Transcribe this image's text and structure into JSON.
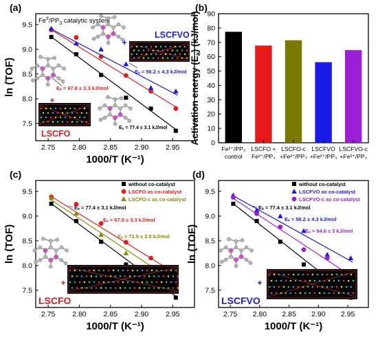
{
  "figure": {
    "panels": [
      {
        "letter": "(a)",
        "title_prefix": "Fe",
        "title_sup": "II",
        "title_suffix": "/PP",
        "title_sub": "3",
        "title_tail": " catalytic system",
        "xlabel": "1000/T (K⁻¹)",
        "ylabel": "ln (TOF)",
        "big_labels": [
          {
            "text": "LSCFVO",
            "color": "#1a1ae6"
          },
          {
            "text": "LSCFO",
            "color": "#e61a1a"
          }
        ]
      },
      {
        "letter": "(b)",
        "ylabel": "Activation energy (E",
        "ylabel_sub": "a",
        "ylabel_tail": ") (kJ/mol)"
      },
      {
        "letter": "(c)",
        "xlabel": "1000/T (K⁻¹)",
        "ylabel": "ln (TOF)",
        "big_label": {
          "text": "LSCFO",
          "color": "#e61a1a"
        }
      },
      {
        "letter": "(d)",
        "xlabel": "1000/T (K⁻¹)",
        "ylabel": "ln (TOF)",
        "big_label": {
          "text": "LSCFVO",
          "color": "#1a1ae6"
        }
      }
    ],
    "legend_c": [
      {
        "text": "without co-catalyst",
        "color": "#000000",
        "marker": "square"
      },
      {
        "text": "LSCFO as co-catalyst",
        "color": "#e61a1a",
        "marker": "circle"
      },
      {
        "text": "LSCFO-c as co-catalyst",
        "color": "#8a8a00",
        "marker": "triangle"
      }
    ],
    "legend_d": [
      {
        "text": "without co-catalyst",
        "color": "#000000",
        "marker": "square"
      },
      {
        "text": "LSCFVO as co-catalyst",
        "color": "#1a1ae6",
        "marker": "triangle"
      },
      {
        "text": "LSCFVO-c as co-catalyst",
        "color": "#9b1fd6",
        "marker": "circle"
      }
    ],
    "bar_labels": [
      {
        "l1": "Fe²⁺/PP₃",
        "l2": "control"
      },
      {
        "l1": "LSCFO +",
        "l2": "Fe²⁺/PP₃"
      },
      {
        "l1": "LSCFO-c",
        "l2": "+Fe²⁺/PP₃"
      },
      {
        "l1": "LSCFVO",
        "l2": "+Fe²⁺/PP₃"
      },
      {
        "l1": "LSCFVO-c",
        "l2": "+Fe²⁺/PP₃"
      }
    ]
  },
  "chart_data": [
    {
      "panel": "(a)",
      "type": "scatter",
      "title": "Fe^II/PP3 catalytic system",
      "xlabel": "1000/T (K⁻¹)",
      "ylabel": "ln (TOF)",
      "xlim": [
        2.73,
        2.985
      ],
      "ylim": [
        7.15,
        9.72
      ],
      "xticks": [
        2.75,
        2.8,
        2.85,
        2.9,
        2.95
      ],
      "yticks": [
        7.5,
        8.0,
        8.5,
        9.0,
        9.5
      ],
      "series": [
        {
          "color": "#000000",
          "marker": "square",
          "x": [
            2.755,
            2.795,
            2.835,
            2.875,
            2.915,
            2.955
          ],
          "y": [
            9.25,
            8.9,
            8.48,
            8.02,
            7.8,
            7.35
          ],
          "fit": [
            9.28,
            7.35
          ],
          "annotation": "Eₐ = 77.4 ± 3.1 kJ/mol"
        },
        {
          "color": "#e61a1a",
          "marker": "circle",
          "x": [
            2.755,
            2.795,
            2.835,
            2.875,
            2.915,
            2.955
          ],
          "y": [
            9.39,
            9.24,
            8.85,
            8.47,
            8.15,
            7.8
          ],
          "fit": [
            9.42,
            7.81
          ],
          "annotation": "Eₐ = 67.8 ± 3.3 kJ/mol"
        },
        {
          "color": "#1a1ae6",
          "marker": "triangle",
          "x": [
            2.755,
            2.795,
            2.835,
            2.875,
            2.915,
            2.955
          ],
          "y": [
            9.42,
            9.12,
            9.0,
            8.7,
            8.22,
            8.15
          ],
          "fit": [
            9.43,
            8.07
          ],
          "annotation": "Eₐ = 56.2 ± 4.3 kJ/mol"
        }
      ]
    },
    {
      "panel": "(b)",
      "type": "bar",
      "ylabel": "Activation energy (Eₐ) (kJ/mol)",
      "ylim": [
        0,
        90
      ],
      "yticks": [
        0,
        10,
        20,
        30,
        40,
        50,
        60,
        70,
        80,
        90
      ],
      "categories": [
        "Fe²⁺/PP₃ control",
        "LSCFO + Fe²⁺/PP₃",
        "LSCFO-c +Fe²⁺/PP₃",
        "LSCFVO +Fe²⁺/PP₃",
        "LSCFVO-c +Fe²⁺/PP₃"
      ],
      "values": [
        77.4,
        67.8,
        71.5,
        56.2,
        64.6
      ],
      "colors": [
        "#000000",
        "#e61a1a",
        "#7a7a00",
        "#1a1ae6",
        "#9b1fd6"
      ]
    },
    {
      "panel": "(c)",
      "type": "scatter",
      "xlabel": "1000/T (K⁻¹)",
      "ylabel": "ln (TOF)",
      "xlim": [
        2.73,
        2.985
      ],
      "ylim": [
        7.15,
        9.72
      ],
      "xticks": [
        2.75,
        2.8,
        2.85,
        2.9,
        2.95
      ],
      "yticks": [
        7.5,
        8.0,
        8.5,
        9.0,
        9.5
      ],
      "series": [
        {
          "name": "without co-catalyst",
          "color": "#000000",
          "marker": "square",
          "x": [
            2.755,
            2.795,
            2.835,
            2.875,
            2.915,
            2.955
          ],
          "y": [
            9.25,
            8.9,
            8.48,
            8.02,
            7.8,
            7.35
          ],
          "fit": [
            9.28,
            7.35
          ],
          "annotation": "Eₐ = 77.4 ± 3.1 kJ/mol"
        },
        {
          "name": "LSCFO as co-catalyst",
          "color": "#e61a1a",
          "marker": "circle",
          "x": [
            2.755,
            2.795,
            2.835,
            2.875,
            2.915,
            2.955
          ],
          "y": [
            9.39,
            9.24,
            8.85,
            8.47,
            8.15,
            7.8
          ],
          "fit": [
            9.42,
            7.81
          ],
          "annotation": "Eₐ = 67.8 ± 3.3 kJ/mol"
        },
        {
          "name": "LSCFO-c as co-catalyst",
          "color": "#8a8a00",
          "marker": "triangle",
          "x": [
            2.755,
            2.795,
            2.835,
            2.875,
            2.915,
            2.955
          ],
          "y": [
            9.37,
            9.05,
            8.62,
            8.25,
            7.9,
            7.7
          ],
          "fit": [
            9.35,
            7.63
          ],
          "annotation": "Eₐ = 71.5 ± 2.8 kJ/mol"
        }
      ]
    },
    {
      "panel": "(d)",
      "type": "scatter",
      "xlabel": "1000/T (K⁻¹)",
      "ylabel": "ln (TOF)",
      "xlim": [
        2.73,
        2.985
      ],
      "ylim": [
        7.15,
        9.72
      ],
      "xticks": [
        2.75,
        2.8,
        2.85,
        2.9,
        2.95
      ],
      "yticks": [
        7.5,
        8.0,
        8.5,
        9.0,
        9.5
      ],
      "series": [
        {
          "name": "without co-catalyst",
          "color": "#000000",
          "marker": "square",
          "x": [
            2.755,
            2.795,
            2.835,
            2.875,
            2.915,
            2.955
          ],
          "y": [
            9.25,
            8.9,
            8.48,
            8.02,
            7.8,
            7.35
          ],
          "fit": [
            9.28,
            7.35
          ],
          "annotation": "Eₐ = 77.4 ± 3.1 kJ/mol"
        },
        {
          "name": "LSCFVO as co-catalyst",
          "color": "#1a1ae6",
          "marker": "triangle",
          "x": [
            2.755,
            2.795,
            2.835,
            2.875,
            2.915,
            2.955
          ],
          "y": [
            9.42,
            9.12,
            9.0,
            8.7,
            8.22,
            8.15
          ],
          "fit": [
            9.43,
            8.07
          ],
          "annotation": "Eₐ = 56.2 ± 4.3 kJ/mol"
        },
        {
          "name": "LSCFVO-c as co-catalyst",
          "color": "#9b1fd6",
          "marker": "circle",
          "x": [
            2.755,
            2.795,
            2.835,
            2.875,
            2.915,
            2.955
          ],
          "y": [
            9.38,
            9.05,
            8.78,
            8.32,
            8.15,
            7.78
          ],
          "fit": [
            9.38,
            7.77
          ],
          "annotation": "Eₐ = 64.6 ±  3 kJ/mol"
        }
      ]
    }
  ]
}
